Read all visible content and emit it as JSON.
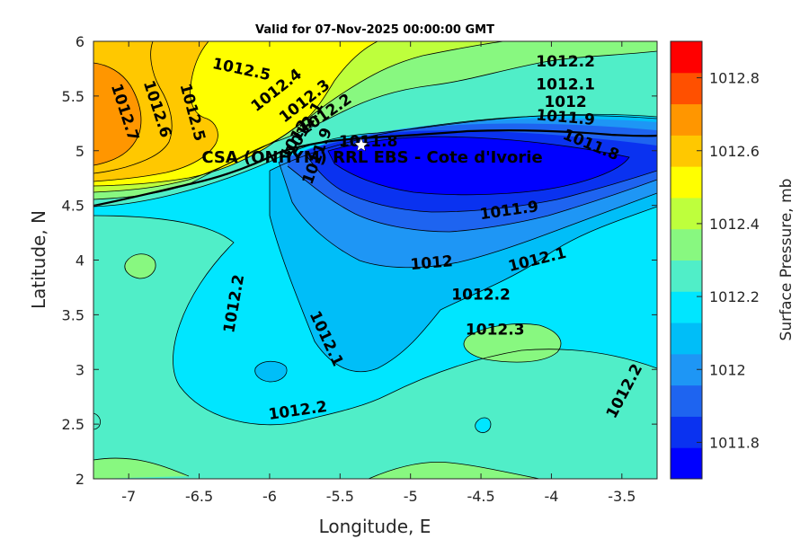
{
  "chart_data": {
    "type": "heatmap",
    "title": "Valid for 07-Nov-2025 00:00:00 GMT",
    "xlabel": "Longitude, E",
    "ylabel": "Latitude, N",
    "xlim": [
      -7.25,
      -3.25
    ],
    "ylim": [
      2,
      6
    ],
    "xticks": [
      -7,
      -6.5,
      -6,
      -5.5,
      -5,
      -4.5,
      -4,
      -3.5
    ],
    "xtick_labels": [
      "-7",
      "-6.5",
      "-6",
      "-5.5",
      "-5",
      "-4.5",
      "-4",
      "-3.5"
    ],
    "yticks": [
      2,
      2.5,
      3,
      3.5,
      4,
      4.5,
      5,
      5.5,
      6
    ],
    "ytick_labels": [
      "2",
      "2.5",
      "3",
      "3.5",
      "4",
      "4.5",
      "5",
      "5.5",
      "6"
    ],
    "colorbar": {
      "label": "Surface Pressure, mb",
      "range": [
        1011.7,
        1012.9
      ],
      "ticks": [
        1011.8,
        1012,
        1012.2,
        1012.4,
        1012.6,
        1012.8
      ],
      "tick_labels": [
        "1011.8",
        "1012",
        "1012.2",
        "1012.4",
        "1012.6",
        "1012.8"
      ],
      "levels": [
        1011.7,
        1011.75,
        1011.8,
        1011.85,
        1011.9,
        1011.95,
        1012,
        1012.05,
        1012.1,
        1012.15,
        1012.2,
        1012.25,
        1012.3,
        1012.35,
        1012.4,
        1012.45,
        1012.5,
        1012.55,
        1012.6,
        1012.65,
        1012.7,
        1012.75,
        1012.8,
        1012.85,
        1012.9
      ],
      "colors": [
        "#0000ff",
        "#0a32f0",
        "#1e64f0",
        "#1e96f5",
        "#00bef8",
        "#00e6ff",
        "#50eec8",
        "#88f880",
        "#beff3c",
        "#ffff00",
        "#ffc800",
        "#ff9600",
        "#ff5000",
        "#ff0000"
      ]
    },
    "field_regions": [
      {
        "value": 1012.25,
        "color": "#50eec8"
      },
      {
        "value": 1012.15,
        "color": "#00e6ff"
      },
      {
        "value": 1012.05,
        "color": "#00bef8"
      },
      {
        "value": 1011.95,
        "color": "#1e96f5"
      },
      {
        "value": 1011.85,
        "color": "#1e64f0"
      },
      {
        "value": 1011.78,
        "color": "#0a32f0"
      },
      {
        "value": 1011.72,
        "color": "#0000ff"
      },
      {
        "value": 1012.35,
        "color": "#88f880"
      },
      {
        "value": 1012.45,
        "color": "#beff3c"
      },
      {
        "value": 1012.55,
        "color": "#ffff00"
      },
      {
        "value": 1012.65,
        "color": "#ffc800"
      },
      {
        "value": 1012.75,
        "color": "#ff9600"
      }
    ],
    "contour_labels": [
      {
        "text": "1012.5",
        "lon": -6.2,
        "lat": 5.74,
        "angle": 12
      },
      {
        "text": "1012.4",
        "lon": -5.95,
        "lat": 5.55,
        "angle": -38
      },
      {
        "text": "1012.3",
        "lon": -5.75,
        "lat": 5.45,
        "angle": -38
      },
      {
        "text": "1012.2",
        "lon": -5.6,
        "lat": 5.33,
        "angle": -35
      },
      {
        "text": "1012.1",
        "lon": -5.75,
        "lat": 5.2,
        "angle": -60
      },
      {
        "text": "1012",
        "lon": -5.82,
        "lat": 5.1,
        "angle": -60
      },
      {
        "text": "1011.9",
        "lon": -5.66,
        "lat": 4.95,
        "angle": -70
      },
      {
        "text": "1011.8",
        "lon": -5.3,
        "lat": 5.08,
        "angle": 0
      },
      {
        "text": "1012.2",
        "lon": -3.9,
        "lat": 5.81,
        "angle": 0
      },
      {
        "text": "1012.1",
        "lon": -3.9,
        "lat": 5.6,
        "angle": 0
      },
      {
        "text": "1012",
        "lon": -3.9,
        "lat": 5.44,
        "angle": 0
      },
      {
        "text": "1011.9",
        "lon": -3.9,
        "lat": 5.3,
        "angle": 5
      },
      {
        "text": "1011.8",
        "lon": -3.72,
        "lat": 5.05,
        "angle": 22
      },
      {
        "text": "1012.7",
        "lon": -7.03,
        "lat": 5.35,
        "angle": 72
      },
      {
        "text": "1012.6",
        "lon": -6.8,
        "lat": 5.38,
        "angle": 72
      },
      {
        "text": "1012.5",
        "lon": -6.55,
        "lat": 5.35,
        "angle": 75
      },
      {
        "text": "1011.9",
        "lon": -4.3,
        "lat": 4.45,
        "angle": -8
      },
      {
        "text": "1012",
        "lon": -4.85,
        "lat": 3.97,
        "angle": -5
      },
      {
        "text": "1012.1",
        "lon": -4.1,
        "lat": 4.0,
        "angle": -14
      },
      {
        "text": "1012.2",
        "lon": -4.5,
        "lat": 3.68,
        "angle": 0
      },
      {
        "text": "1012.3",
        "lon": -4.4,
        "lat": 3.36,
        "angle": 0
      },
      {
        "text": "1012.2",
        "lon": -6.25,
        "lat": 3.6,
        "angle": -80
      },
      {
        "text": "1012.1",
        "lon": -5.6,
        "lat": 3.28,
        "angle": 65
      },
      {
        "text": "1012.2",
        "lon": -5.8,
        "lat": 2.62,
        "angle": -8
      },
      {
        "text": "1012.2",
        "lon": -3.48,
        "lat": 2.8,
        "angle": -62
      }
    ],
    "station": {
      "label": "CSA (ONHYM) RRL EBS  - Cote d'Ivorie",
      "lon": -5.35,
      "lat": 5.05
    }
  }
}
